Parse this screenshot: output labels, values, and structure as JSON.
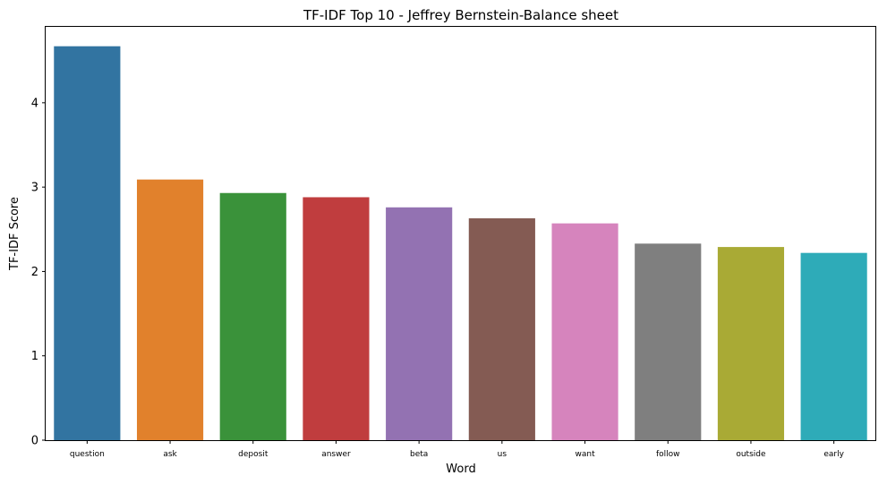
{
  "chart_data": {
    "type": "bar",
    "title": "TF-IDF Top 10 - Jeffrey Bernstein-Balance sheet",
    "xlabel": "Word",
    "ylabel": "TF-IDF Score",
    "categories": [
      "question",
      "ask",
      "deposit",
      "answer",
      "beta",
      "us",
      "want",
      "follow",
      "outside",
      "early"
    ],
    "values": [
      4.67,
      3.09,
      2.93,
      2.88,
      2.76,
      2.63,
      2.57,
      2.33,
      2.29,
      2.22
    ],
    "colors": [
      "#3274a1",
      "#e1812c",
      "#3a923a",
      "#c03d3e",
      "#9372b2",
      "#845b53",
      "#d684bd",
      "#7f7f7f",
      "#a9aa35",
      "#2eabb8"
    ],
    "yticks": [
      0,
      1,
      2,
      3,
      4
    ],
    "ylim": [
      0,
      4.9
    ],
    "grid": false,
    "legend": false
  }
}
